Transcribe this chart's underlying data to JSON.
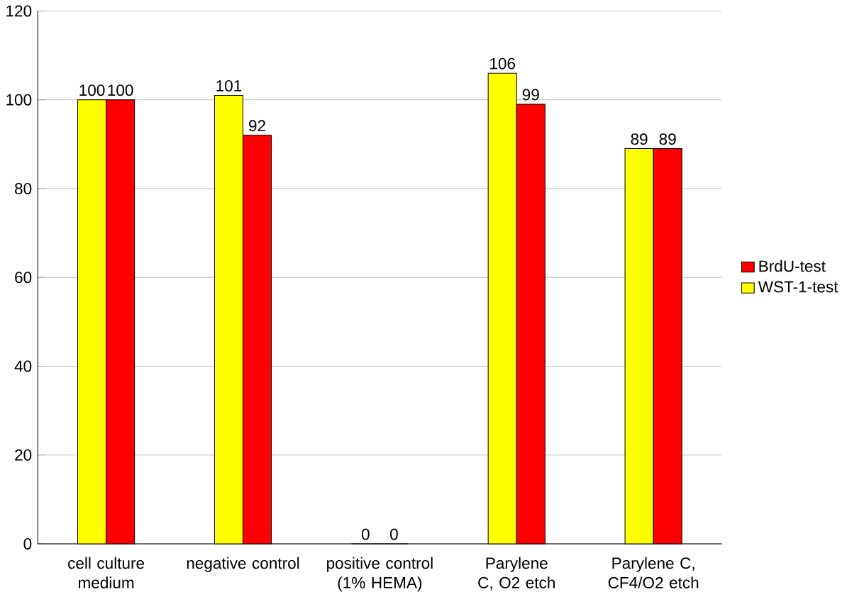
{
  "chart_data": {
    "type": "bar",
    "categories": [
      "cell culture medium",
      "negative control",
      "positive control (1% HEMA)",
      "Parylene C, O2 etch",
      "Parylene C, CF4/O2 etch"
    ],
    "series": [
      {
        "name": "WST-1-test",
        "color": "#ffff00",
        "values": [
          100,
          101,
          0,
          106,
          89
        ]
      },
      {
        "name": "BrdU-test",
        "color": "#ff0000",
        "values": [
          100,
          92,
          0,
          99,
          89
        ]
      }
    ],
    "ylim": [
      0,
      120
    ],
    "yticks": [
      0,
      20,
      40,
      60,
      80,
      100,
      120
    ],
    "grid": "y",
    "legend": "right",
    "data_labels": true
  }
}
